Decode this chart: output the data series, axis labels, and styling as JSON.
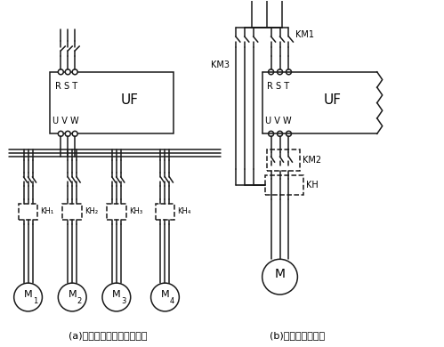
{
  "bg_color": "#ffffff",
  "line_color": "#1a1a1a",
  "label_a": "(a)一台变频器接多台电动机",
  "label_b": "(b)变频和工频切换",
  "uf_label": "UF",
  "km1_label": "KM1",
  "km2_label": "KM2",
  "km3_label": "KM3",
  "kh_label": "KH",
  "figsize": [
    4.99,
    3.9
  ],
  "dpi": 100
}
